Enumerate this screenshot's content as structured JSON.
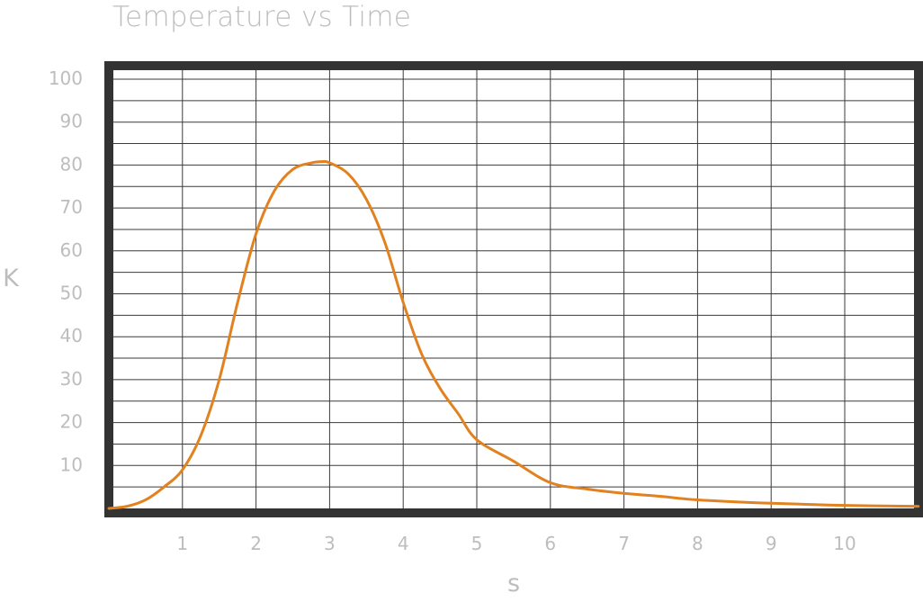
{
  "chart_data": {
    "type": "line",
    "title": "Temperature vs Time",
    "xlabel": "s",
    "ylabel": "K",
    "xlim": [
      0,
      11
    ],
    "ylim": [
      0,
      105
    ],
    "x_ticks": [
      1,
      2,
      3,
      4,
      5,
      6,
      7,
      8,
      9,
      10
    ],
    "y_ticks": [
      10,
      20,
      30,
      40,
      50,
      60,
      70,
      80,
      90,
      100
    ],
    "grid": true,
    "colors": {
      "line": "#e2811f",
      "frame": "#333333",
      "grid": "#3a3a3a",
      "labels": "#bdbdbd"
    },
    "series": [
      {
        "x": [
          0,
          0.25,
          0.5,
          0.75,
          1,
          1.25,
          1.5,
          1.75,
          2,
          2.25,
          2.5,
          2.75,
          2.9,
          3,
          3.25,
          3.5,
          3.75,
          4,
          4.25,
          4.5,
          4.75,
          5,
          5.5,
          6,
          6.5,
          7,
          7.5,
          8,
          9,
          10,
          11
        ],
        "values": [
          0,
          0.5,
          2,
          5,
          9,
          17,
          30,
          48,
          64,
          74,
          79,
          80.5,
          80.8,
          80.5,
          78,
          72,
          62,
          48,
          36,
          28,
          22,
          16,
          11,
          6,
          4.5,
          3.5,
          2.8,
          2,
          1.2,
          0.7,
          0.5
        ]
      }
    ]
  }
}
